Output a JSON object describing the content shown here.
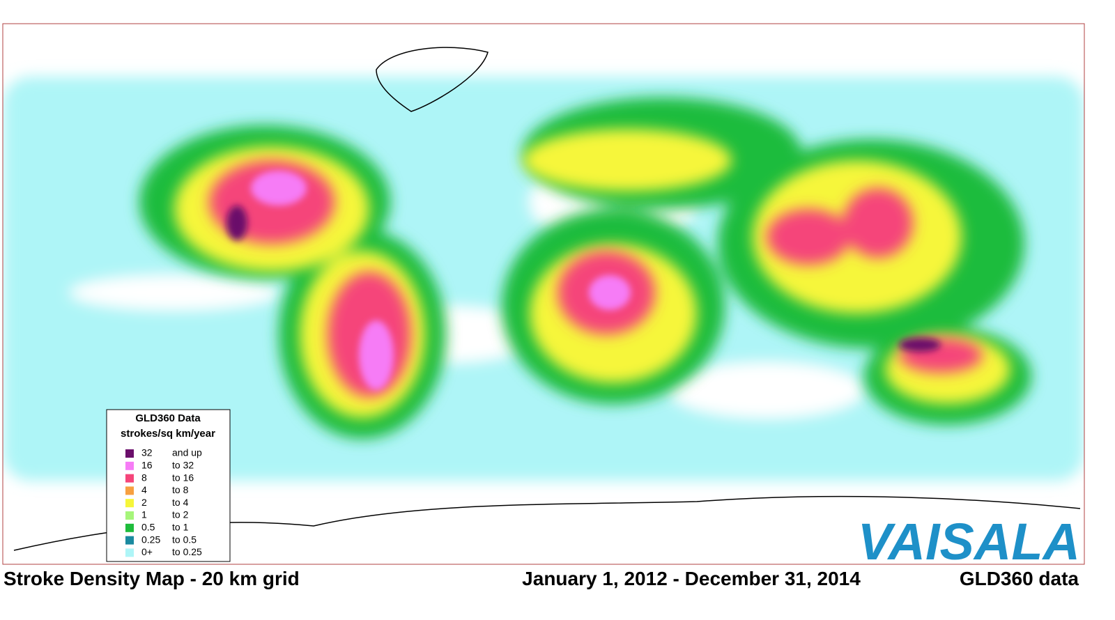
{
  "map": {
    "legend": {
      "title": "GLD360 Data",
      "unit": "strokes/sq km/year",
      "entries": [
        {
          "from": "32",
          "to": "and up",
          "color": "#6b0f6b"
        },
        {
          "from": "16",
          "to": "to 32",
          "color": "#f67cf6"
        },
        {
          "from": "8",
          "to": "to 16",
          "color": "#f5457a"
        },
        {
          "from": "4",
          "to": "to 8",
          "color": "#f7a040"
        },
        {
          "from": "2",
          "to": "to 4",
          "color": "#f6f63a"
        },
        {
          "from": "1",
          "to": "to 2",
          "color": "#a6f57a"
        },
        {
          "from": "0.5",
          "to": "to 1",
          "color": "#1ebc3c"
        },
        {
          "from": "0.25",
          "to": "to 0.5",
          "color": "#1a8aa0"
        },
        {
          "from": "0+",
          "to": "to 0.25",
          "color": "#aef5f7"
        }
      ]
    },
    "logo": "VAISALA"
  },
  "footer": {
    "left": "Stroke Density Map - 20 km grid",
    "center": "January 1, 2012 - December 31, 2014",
    "right": "GLD360 data"
  }
}
